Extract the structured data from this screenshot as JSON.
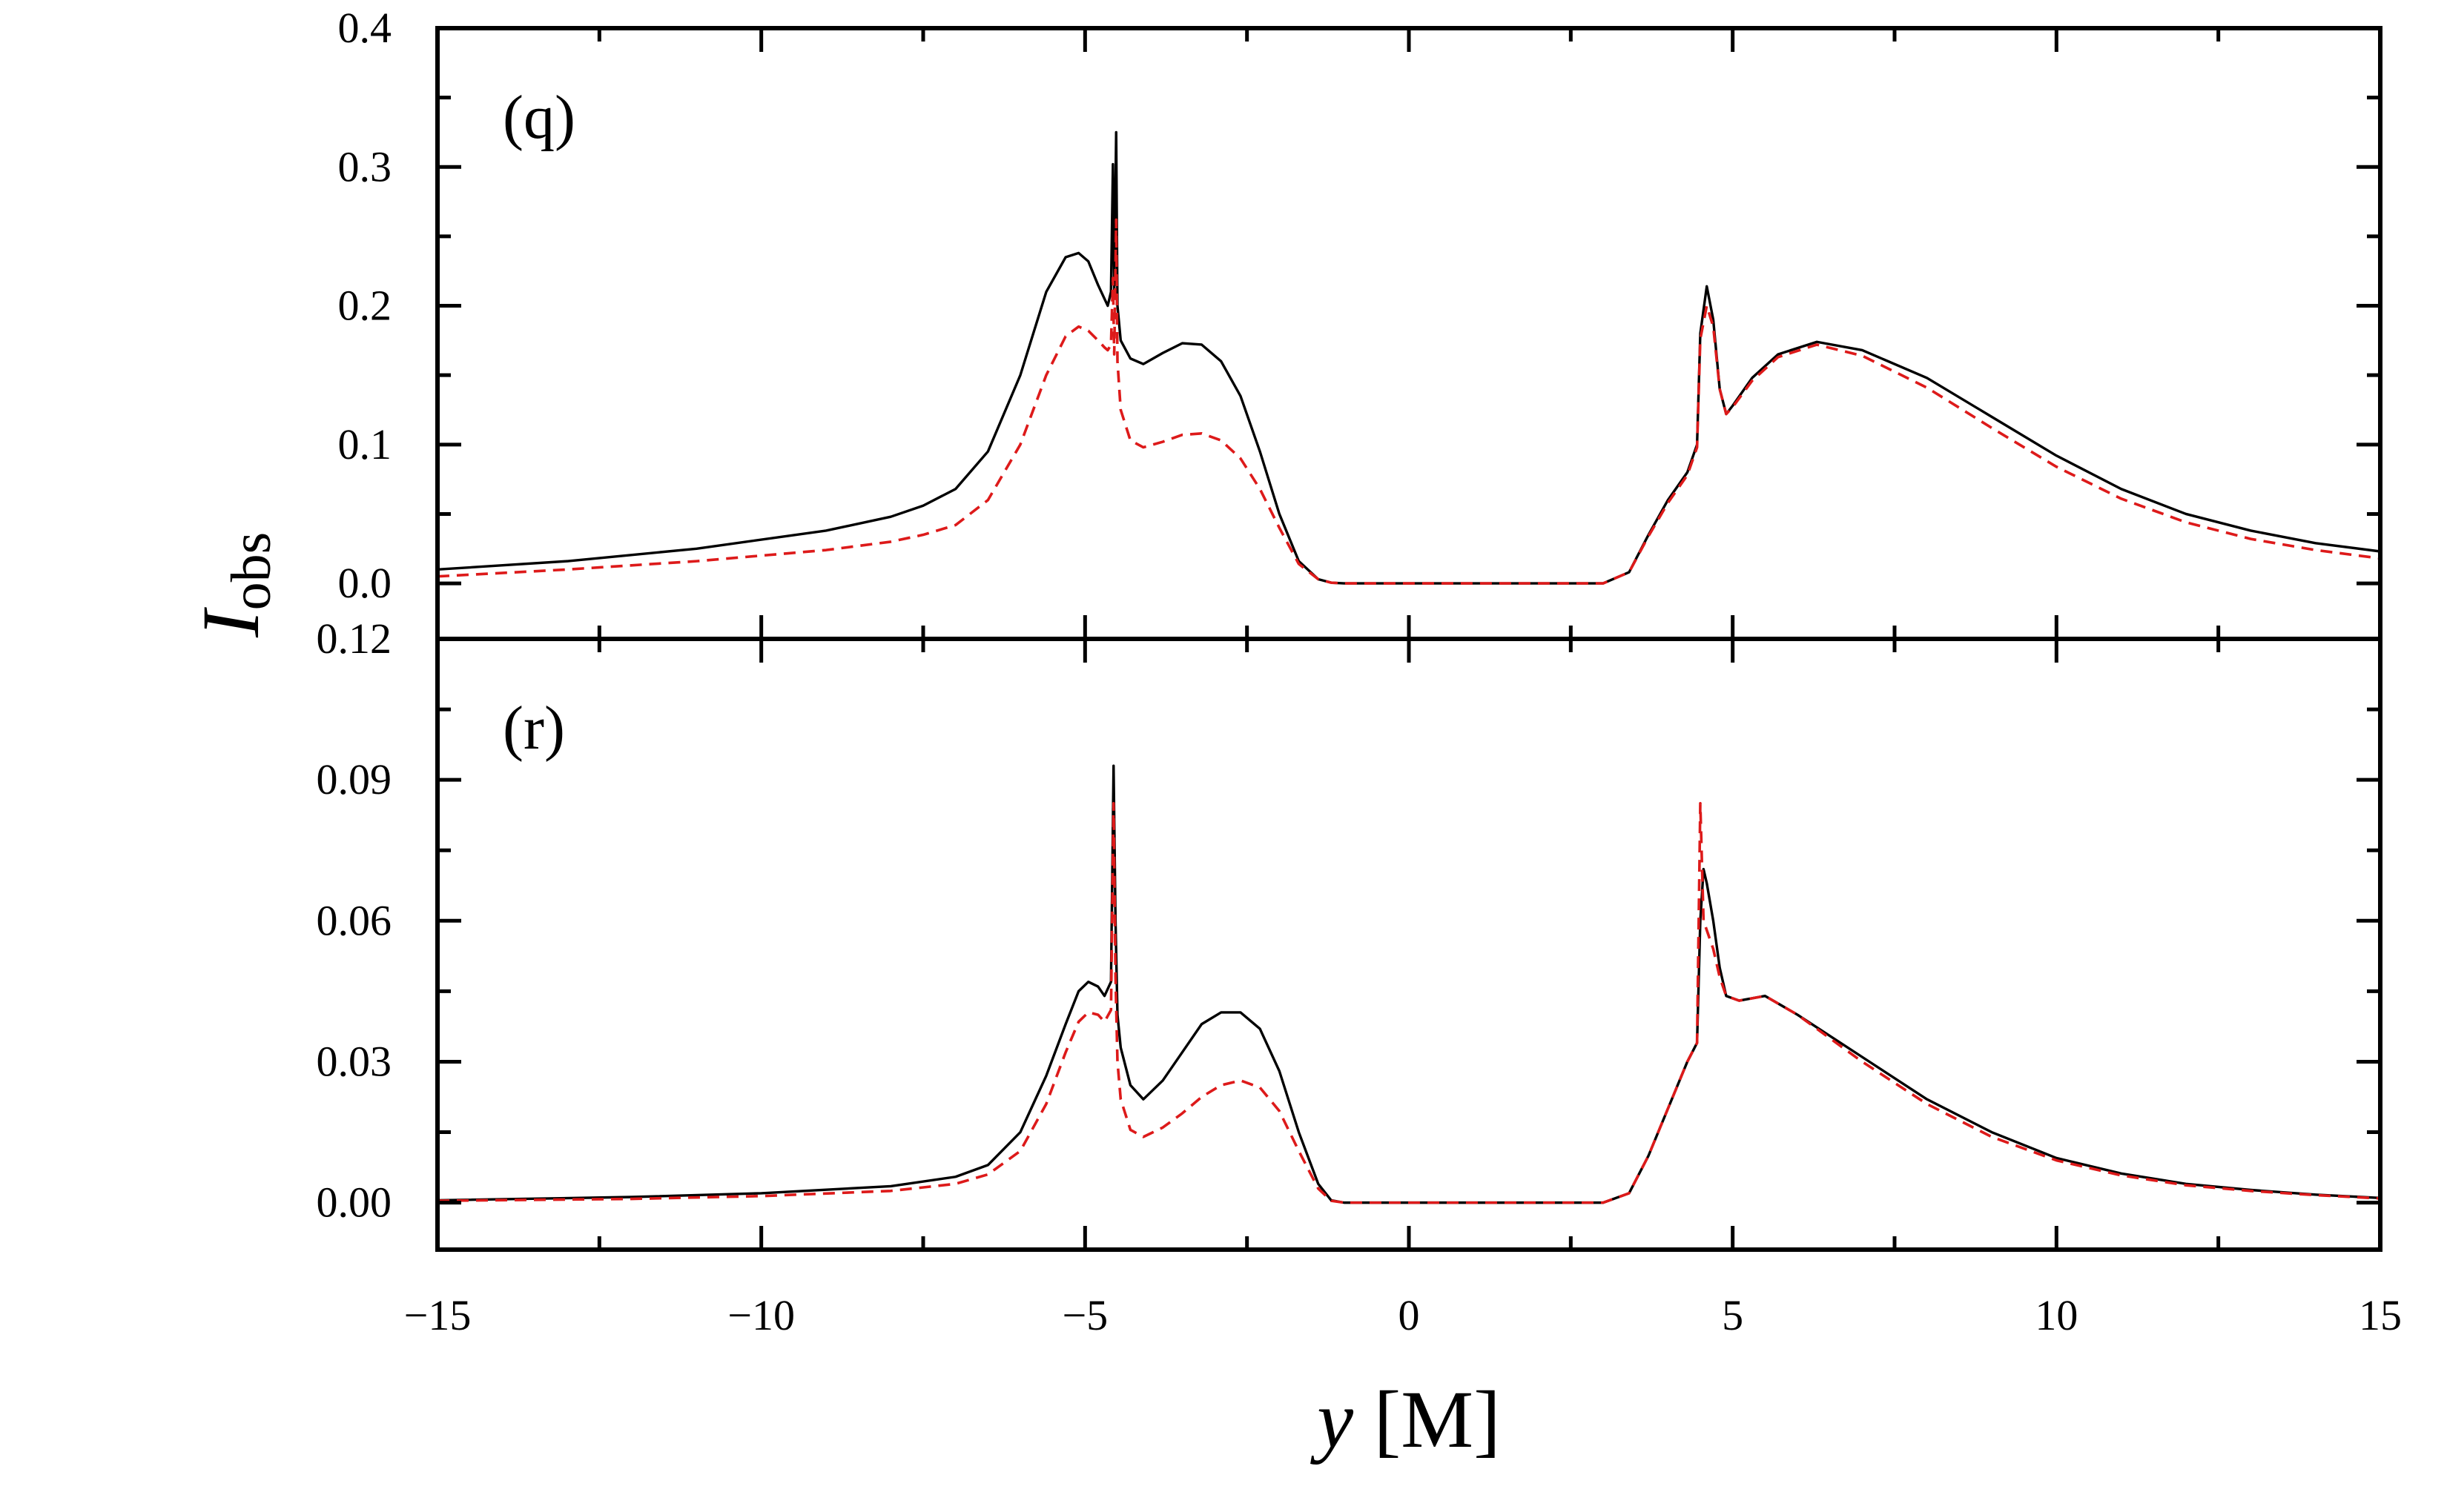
{
  "figure": {
    "ylabel_main": "I",
    "ylabel_sub": "obs",
    "xlabel_var": "y",
    "xlabel_unit": " [M]"
  },
  "colors": {
    "solid": "#000000",
    "dashed": "#dd1a1a",
    "axis": "#000000"
  },
  "chart_data": [
    {
      "type": "line",
      "panel": "(q)",
      "xlim": [
        -15,
        15
      ],
      "ylim": [
        -0.04,
        0.4
      ],
      "xticks": [
        -15,
        -10,
        -5,
        0,
        5,
        10,
        15
      ],
      "xtick_labels": [
        "−15",
        "−10",
        "−5",
        "0",
        "5",
        "10",
        "15"
      ],
      "yticks": [
        0.0,
        0.1,
        0.2,
        0.3,
        0.4
      ],
      "ytick_labels": [
        "0.0",
        "0.1",
        "0.2",
        "0.3",
        "0.4"
      ],
      "series": [
        {
          "name": "solid",
          "style": "solid",
          "x": [
            -15,
            -13,
            -11,
            -9,
            -8,
            -7.5,
            -7,
            -6.5,
            -6,
            -5.6,
            -5.3,
            -5.1,
            -4.95,
            -4.8,
            -4.7,
            -4.65,
            -4.6,
            -4.57,
            -4.55,
            -4.52,
            -4.5,
            -4.45,
            -4.3,
            -4.1,
            -3.8,
            -3.5,
            -3.2,
            -2.9,
            -2.6,
            -2.3,
            -2.0,
            -1.7,
            -1.4,
            -1.2,
            -1.0,
            0,
            2,
            3,
            3.4,
            3.7,
            4.0,
            4.3,
            4.45,
            4.5,
            4.6,
            4.7,
            4.8,
            4.9,
            5.0,
            5.3,
            5.7,
            6.3,
            7,
            8,
            9,
            10,
            11,
            12,
            13,
            14,
            15
          ],
          "y": [
            0.01,
            0.016,
            0.025,
            0.038,
            0.048,
            0.056,
            0.068,
            0.095,
            0.15,
            0.21,
            0.235,
            0.238,
            0.232,
            0.215,
            0.205,
            0.2,
            0.21,
            0.302,
            0.21,
            0.325,
            0.2,
            0.175,
            0.162,
            0.158,
            0.166,
            0.173,
            0.172,
            0.16,
            0.135,
            0.095,
            0.05,
            0.016,
            0.003,
            0.0005,
            0.0,
            0.0,
            0.0,
            0.0,
            0.008,
            0.035,
            0.06,
            0.08,
            0.1,
            0.18,
            0.214,
            0.19,
            0.14,
            0.122,
            0.128,
            0.148,
            0.165,
            0.174,
            0.168,
            0.148,
            0.12,
            0.092,
            0.068,
            0.05,
            0.038,
            0.029,
            0.023
          ]
        },
        {
          "name": "dashed",
          "style": "dashed",
          "x": [
            -15,
            -13,
            -11,
            -9,
            -8,
            -7.5,
            -7,
            -6.5,
            -6,
            -5.6,
            -5.3,
            -5.1,
            -4.95,
            -4.8,
            -4.7,
            -4.65,
            -4.6,
            -4.57,
            -4.55,
            -4.52,
            -4.5,
            -4.45,
            -4.3,
            -4.1,
            -3.8,
            -3.5,
            -3.2,
            -2.9,
            -2.6,
            -2.3,
            -2.0,
            -1.7,
            -1.4,
            -1.2,
            -1.0,
            0,
            2,
            3,
            3.4,
            3.7,
            4.0,
            4.3,
            4.45,
            4.5,
            4.6,
            4.7,
            4.8,
            4.9,
            5.0,
            5.3,
            5.7,
            6.3,
            7,
            8,
            9,
            10,
            11,
            12,
            13,
            14,
            15
          ],
          "y": [
            0.005,
            0.01,
            0.016,
            0.024,
            0.03,
            0.035,
            0.042,
            0.06,
            0.1,
            0.15,
            0.178,
            0.185,
            0.182,
            0.175,
            0.17,
            0.168,
            0.172,
            0.22,
            0.165,
            0.262,
            0.16,
            0.125,
            0.103,
            0.098,
            0.102,
            0.107,
            0.108,
            0.103,
            0.09,
            0.068,
            0.04,
            0.014,
            0.003,
            0.0005,
            0.0,
            0.0,
            0.0,
            0.0,
            0.008,
            0.034,
            0.058,
            0.078,
            0.098,
            0.176,
            0.2,
            0.185,
            0.14,
            0.122,
            0.127,
            0.146,
            0.163,
            0.172,
            0.164,
            0.141,
            0.112,
            0.084,
            0.061,
            0.044,
            0.032,
            0.024,
            0.018
          ]
        }
      ]
    },
    {
      "type": "line",
      "panel": "(r)",
      "xlim": [
        -15,
        15
      ],
      "ylim": [
        -0.01,
        0.12
      ],
      "xticks": [
        -15,
        -10,
        -5,
        0,
        5,
        10,
        15
      ],
      "xtick_labels": [
        "−15",
        "−10",
        "−5",
        "0",
        "5",
        "10",
        "15"
      ],
      "yticks": [
        0.0,
        0.03,
        0.06,
        0.09,
        0.12
      ],
      "ytick_labels": [
        "0.00",
        "0.03",
        "0.06",
        "0.09",
        "0.12"
      ],
      "series": [
        {
          "name": "solid",
          "style": "solid",
          "x": [
            -15,
            -12,
            -10,
            -8,
            -7,
            -6.5,
            -6,
            -5.6,
            -5.3,
            -5.1,
            -4.95,
            -4.8,
            -4.7,
            -4.6,
            -4.56,
            -4.53,
            -4.5,
            -4.45,
            -4.3,
            -4.1,
            -3.8,
            -3.5,
            -3.2,
            -2.9,
            -2.6,
            -2.3,
            -2.0,
            -1.7,
            -1.4,
            -1.2,
            -1.0,
            0,
            2,
            3,
            3.4,
            3.7,
            4.0,
            4.3,
            4.45,
            4.5,
            4.55,
            4.6,
            4.7,
            4.8,
            4.9,
            5.1,
            5.5,
            6,
            7,
            8,
            9,
            10,
            11,
            12,
            13,
            14,
            15
          ],
          "y": [
            0.0005,
            0.0012,
            0.002,
            0.0035,
            0.0055,
            0.008,
            0.015,
            0.027,
            0.038,
            0.045,
            0.047,
            0.046,
            0.044,
            0.047,
            0.093,
            0.06,
            0.04,
            0.033,
            0.025,
            0.022,
            0.026,
            0.032,
            0.038,
            0.0405,
            0.0405,
            0.037,
            0.028,
            0.015,
            0.004,
            0.0005,
            0.0,
            0.0,
            0.0,
            0.0,
            0.002,
            0.01,
            0.02,
            0.03,
            0.034,
            0.06,
            0.071,
            0.068,
            0.06,
            0.05,
            0.044,
            0.043,
            0.044,
            0.04,
            0.031,
            0.022,
            0.015,
            0.0095,
            0.0062,
            0.004,
            0.0027,
            0.0017,
            0.001
          ]
        },
        {
          "name": "dashed",
          "style": "dashed",
          "x": [
            -15,
            -12,
            -10,
            -8,
            -7,
            -6.5,
            -6,
            -5.6,
            -5.3,
            -5.1,
            -4.95,
            -4.8,
            -4.7,
            -4.6,
            -4.56,
            -4.53,
            -4.5,
            -4.45,
            -4.3,
            -4.1,
            -3.8,
            -3.5,
            -3.2,
            -2.9,
            -2.6,
            -2.3,
            -2.0,
            -1.7,
            -1.4,
            -1.2,
            -1.0,
            0,
            2,
            3,
            3.4,
            3.7,
            4.0,
            4.3,
            4.45,
            4.5,
            4.55,
            4.6,
            4.7,
            4.8,
            4.9,
            5.1,
            5.5,
            6,
            7,
            8,
            9,
            10,
            11,
            12,
            13,
            14,
            15
          ],
          "y": [
            0.0004,
            0.0008,
            0.0014,
            0.0025,
            0.004,
            0.006,
            0.011,
            0.021,
            0.032,
            0.0385,
            0.0405,
            0.04,
            0.0385,
            0.041,
            0.085,
            0.048,
            0.03,
            0.022,
            0.0155,
            0.014,
            0.016,
            0.019,
            0.0225,
            0.025,
            0.026,
            0.0245,
            0.0195,
            0.011,
            0.003,
            0.0004,
            0.0,
            0.0,
            0.0,
            0.0,
            0.002,
            0.01,
            0.02,
            0.03,
            0.034,
            0.085,
            0.06,
            0.058,
            0.054,
            0.048,
            0.044,
            0.043,
            0.044,
            0.04,
            0.03,
            0.021,
            0.014,
            0.009,
            0.0058,
            0.0037,
            0.0025,
            0.0016,
            0.0009
          ]
        }
      ]
    }
  ]
}
